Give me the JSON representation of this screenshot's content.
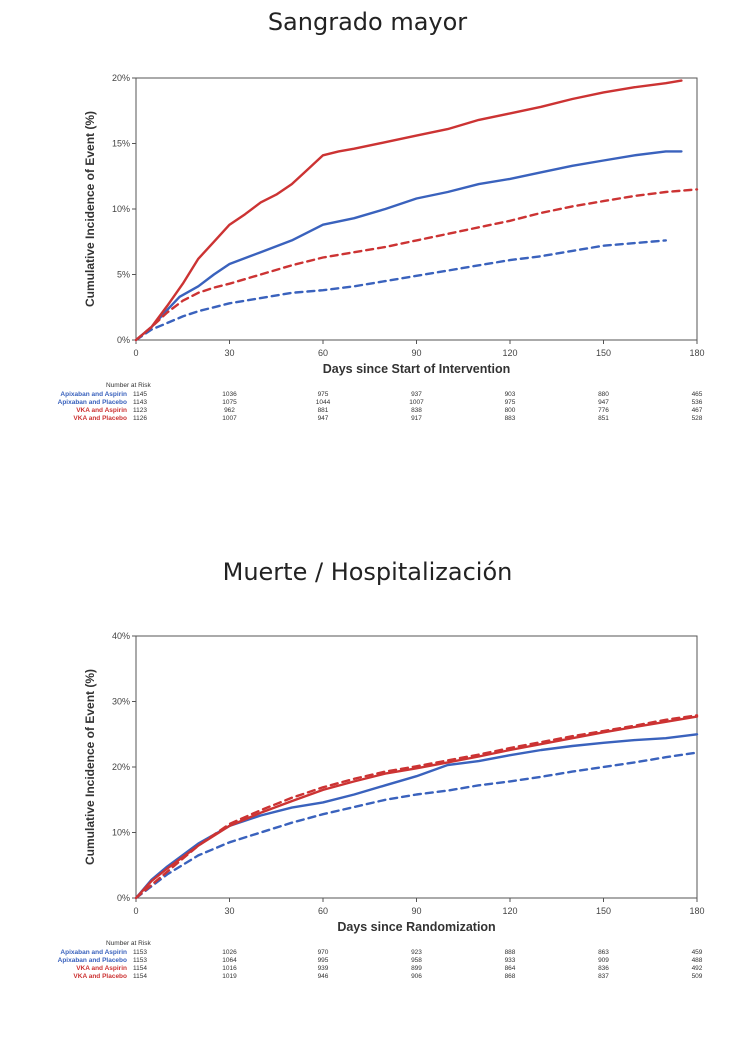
{
  "titles": [
    "Sangrado mayor",
    "Muerte / Hospitalización"
  ],
  "colors": {
    "apixaban": "#3a62bd",
    "vka": "#cc3333",
    "axis": "#555555"
  },
  "chart_data": [
    {
      "type": "line",
      "title": "Sangrado mayor",
      "xlabel": "Days since Start of Intervention",
      "ylabel": "Cumulative Incidence of Event (%)",
      "xlim": [
        0,
        180
      ],
      "ylim": [
        0,
        20
      ],
      "xticks": [
        0,
        30,
        60,
        90,
        120,
        150,
        180
      ],
      "yticks": [
        0,
        5,
        10,
        15,
        20
      ],
      "ytick_labels": [
        "0%",
        "5%",
        "10%",
        "15%",
        "20%"
      ],
      "series": [
        {
          "name": "Apixaban and Aspirin",
          "color": "#3a62bd",
          "dash": false,
          "x": [
            0,
            5,
            10,
            14,
            20,
            25,
            30,
            40,
            50,
            60,
            70,
            80,
            90,
            100,
            110,
            120,
            130,
            140,
            150,
            160,
            170,
            175
          ],
          "y": [
            0,
            1.0,
            2.3,
            3.3,
            4.1,
            5.0,
            5.8,
            6.7,
            7.6,
            8.8,
            9.3,
            10.0,
            10.8,
            11.3,
            11.9,
            12.3,
            12.8,
            13.3,
            13.7,
            14.1,
            14.4,
            14.4
          ]
        },
        {
          "name": "Apixaban and Placebo",
          "color": "#3a62bd",
          "dash": true,
          "x": [
            0,
            5,
            10,
            15,
            20,
            25,
            30,
            40,
            50,
            60,
            70,
            80,
            90,
            100,
            110,
            120,
            130,
            140,
            150,
            160,
            170
          ],
          "y": [
            0,
            0.8,
            1.3,
            1.8,
            2.2,
            2.5,
            2.8,
            3.2,
            3.6,
            3.8,
            4.1,
            4.5,
            4.9,
            5.3,
            5.7,
            6.1,
            6.4,
            6.8,
            7.2,
            7.4,
            7.6
          ]
        },
        {
          "name": "VKA and Aspirin",
          "color": "#cc3333",
          "dash": false,
          "x": [
            0,
            5,
            10,
            15,
            20,
            25,
            30,
            35,
            40,
            45,
            50,
            55,
            60,
            65,
            70,
            80,
            90,
            100,
            110,
            120,
            130,
            140,
            150,
            160,
            170,
            175
          ],
          "y": [
            0,
            1.0,
            2.6,
            4.3,
            6.2,
            7.5,
            8.8,
            9.6,
            10.5,
            11.1,
            11.9,
            13.0,
            14.1,
            14.4,
            14.6,
            15.1,
            15.6,
            16.1,
            16.8,
            17.3,
            17.8,
            18.4,
            18.9,
            19.3,
            19.6,
            19.8
          ]
        },
        {
          "name": "VKA and Placebo",
          "color": "#cc3333",
          "dash": true,
          "x": [
            0,
            5,
            10,
            15,
            20,
            25,
            30,
            40,
            50,
            60,
            70,
            80,
            90,
            100,
            110,
            120,
            130,
            140,
            150,
            160,
            170,
            180
          ],
          "y": [
            0,
            1.0,
            2.1,
            3.0,
            3.6,
            4.0,
            4.3,
            5.0,
            5.7,
            6.3,
            6.7,
            7.1,
            7.6,
            8.1,
            8.6,
            9.1,
            9.7,
            10.2,
            10.6,
            11.0,
            11.3,
            11.5
          ]
        }
      ],
      "risk_table": {
        "heading": "Number at Risk",
        "timepoints": [
          0,
          30,
          60,
          90,
          120,
          150,
          180
        ],
        "rows": [
          {
            "name": "Apixaban and Aspirin",
            "color": "#3a62bd",
            "values": [
              "1145",
              "1036",
              "975",
              "937",
              "903",
              "880",
              "465"
            ]
          },
          {
            "name": "Apixaban and Placebo",
            "color": "#3a62bd",
            "values": [
              "1143",
              "1075",
              "1044",
              "1007",
              "975",
              "947",
              "536"
            ]
          },
          {
            "name": "VKA and Aspirin",
            "color": "#cc3333",
            "values": [
              "1123",
              "962",
              "881",
              "838",
              "800",
              "776",
              "467"
            ]
          },
          {
            "name": "VKA and Placebo",
            "color": "#cc3333",
            "values": [
              "1126",
              "1007",
              "947",
              "917",
              "883",
              "851",
              "528"
            ]
          }
        ]
      }
    },
    {
      "type": "line",
      "title": "Muerte / Hospitalización",
      "xlabel": "Days since Randomization",
      "ylabel": "Cumulative Incidence of Event (%)",
      "xlim": [
        0,
        180
      ],
      "ylim": [
        0,
        40
      ],
      "xticks": [
        0,
        30,
        60,
        90,
        120,
        150,
        180
      ],
      "yticks": [
        0,
        10,
        20,
        30,
        40
      ],
      "ytick_labels": [
        "0%",
        "10%",
        "20%",
        "30%",
        "40%"
      ],
      "series": [
        {
          "name": "Apixaban and Aspirin",
          "color": "#3a62bd",
          "dash": false,
          "x": [
            0,
            5,
            10,
            20,
            30,
            40,
            50,
            60,
            70,
            80,
            90,
            100,
            110,
            120,
            130,
            140,
            150,
            160,
            170,
            180
          ],
          "y": [
            0,
            2.8,
            4.8,
            8.3,
            11.0,
            12.6,
            13.8,
            14.6,
            15.8,
            17.2,
            18.6,
            20.3,
            20.9,
            21.8,
            22.6,
            23.2,
            23.7,
            24.1,
            24.4,
            25.0
          ]
        },
        {
          "name": "Apixaban and Placebo",
          "color": "#3a62bd",
          "dash": true,
          "x": [
            0,
            5,
            10,
            20,
            30,
            40,
            50,
            60,
            70,
            80,
            90,
            100,
            110,
            120,
            130,
            140,
            150,
            160,
            170,
            180
          ],
          "y": [
            0,
            1.8,
            3.6,
            6.5,
            8.5,
            10.0,
            11.5,
            12.8,
            13.9,
            15.0,
            15.8,
            16.4,
            17.2,
            17.8,
            18.5,
            19.3,
            20.0,
            20.7,
            21.5,
            22.2
          ]
        },
        {
          "name": "VKA and Aspirin",
          "color": "#cc3333",
          "dash": false,
          "x": [
            0,
            5,
            10,
            20,
            30,
            40,
            50,
            60,
            70,
            80,
            90,
            100,
            110,
            120,
            130,
            140,
            150,
            160,
            170,
            180
          ],
          "y": [
            0,
            2.6,
            4.5,
            8.0,
            11.0,
            13.0,
            14.8,
            16.5,
            17.8,
            19.0,
            19.8,
            20.7,
            21.6,
            22.6,
            23.5,
            24.4,
            25.3,
            26.1,
            26.9,
            27.7
          ]
        },
        {
          "name": "VKA and Placebo",
          "color": "#cc3333",
          "dash": true,
          "x": [
            0,
            5,
            10,
            20,
            30,
            40,
            50,
            60,
            70,
            80,
            90,
            100,
            110,
            120,
            130,
            140,
            150,
            160,
            170,
            180
          ],
          "y": [
            0,
            2.0,
            4.0,
            8.0,
            11.3,
            13.4,
            15.3,
            16.9,
            18.2,
            19.3,
            20.1,
            21.0,
            21.9,
            22.9,
            23.8,
            24.7,
            25.5,
            26.3,
            27.2,
            27.9
          ]
        }
      ],
      "risk_table": {
        "heading": "Number at Risk",
        "timepoints": [
          0,
          30,
          60,
          90,
          120,
          150,
          180
        ],
        "rows": [
          {
            "name": "Apixaban and Aspirin",
            "color": "#3a62bd",
            "values": [
              "1153",
              "1026",
              "970",
              "923",
              "888",
              "863",
              "459"
            ]
          },
          {
            "name": "Apixaban and Placebo",
            "color": "#3a62bd",
            "values": [
              "1153",
              "1064",
              "995",
              "958",
              "933",
              "909",
              "488"
            ]
          },
          {
            "name": "VKA and Aspirin",
            "color": "#cc3333",
            "values": [
              "1154",
              "1016",
              "939",
              "899",
              "864",
              "836",
              "492"
            ]
          },
          {
            "name": "VKA and Placebo",
            "color": "#cc3333",
            "values": [
              "1154",
              "1019",
              "946",
              "906",
              "868",
              "837",
              "509"
            ]
          }
        ]
      }
    }
  ]
}
